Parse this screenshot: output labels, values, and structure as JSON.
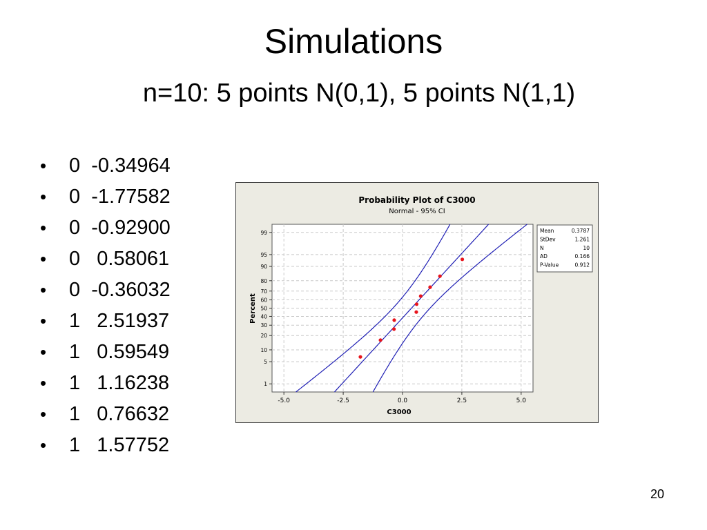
{
  "slide": {
    "title": "Simulations",
    "subtitle": "n=10:  5 points N(0,1), 5 points N(1,1)",
    "page_number": "20"
  },
  "bullets": [
    {
      "marker": "•",
      "text": "0  -0.34964"
    },
    {
      "marker": "•",
      "text": "0  -1.77582"
    },
    {
      "marker": "•",
      "text": "0  -0.92900"
    },
    {
      "marker": "•",
      "text": "0   0.58061"
    },
    {
      "marker": "•",
      "text": "0  -0.36032"
    },
    {
      "marker": "•",
      "text": "1   2.51937"
    },
    {
      "marker": "•",
      "text": "1   0.59549"
    },
    {
      "marker": "•",
      "text": "1   1.16238"
    },
    {
      "marker": "•",
      "text": "1   0.76632"
    },
    {
      "marker": "•",
      "text": "1   1.57752"
    }
  ],
  "chart_data": {
    "type": "scatter",
    "title": "Probability Plot of C3000",
    "subtitle": "Normal - 95% CI",
    "xlabel": "C3000",
    "ylabel": "Percent",
    "xlim": [
      -5.5,
      5.5
    ],
    "x_ticks": [
      -5.0,
      -2.5,
      0.0,
      2.5,
      5.0
    ],
    "x_tick_labels": [
      "-5.0",
      "-2.5",
      "0.0",
      "2.5",
      "5.0"
    ],
    "y_ticks": [
      1,
      5,
      10,
      20,
      30,
      40,
      50,
      60,
      70,
      80,
      90,
      95,
      99
    ],
    "y_tick_labels": [
      "1",
      "5",
      "10",
      "20",
      "30",
      "40",
      "50",
      "60",
      "70",
      "80",
      "90",
      "95",
      "99"
    ],
    "y_scale": "normal-probability",
    "grid": true,
    "points": [
      {
        "x": -1.77582,
        "y": 6.7
      },
      {
        "x": -0.929,
        "y": 16.3
      },
      {
        "x": -0.36032,
        "y": 26.0
      },
      {
        "x": -0.34964,
        "y": 35.6
      },
      {
        "x": 0.58061,
        "y": 45.2
      },
      {
        "x": 0.59549,
        "y": 54.8
      },
      {
        "x": 0.76632,
        "y": 64.4
      },
      {
        "x": 1.16238,
        "y": 74.0
      },
      {
        "x": 1.57752,
        "y": 83.7
      },
      {
        "x": 2.51937,
        "y": 93.3
      }
    ],
    "fit": {
      "mean": 0.3787,
      "stdev": 1.261,
      "n": 10
    },
    "stats_table": {
      "position": "top-right",
      "rows": [
        {
          "label": "Mean",
          "value": "0.3787"
        },
        {
          "label": "StDev",
          "value": "1.261"
        },
        {
          "label": "N",
          "value": "10"
        },
        {
          "label": "AD",
          "value": "0.166"
        },
        {
          "label": "P-Value",
          "value": "0.912"
        }
      ]
    },
    "colors": {
      "points": "#e8141c",
      "fit_line": "#1f1fb4",
      "grid": "#c8c8c8",
      "background": "#ecebe3"
    }
  }
}
